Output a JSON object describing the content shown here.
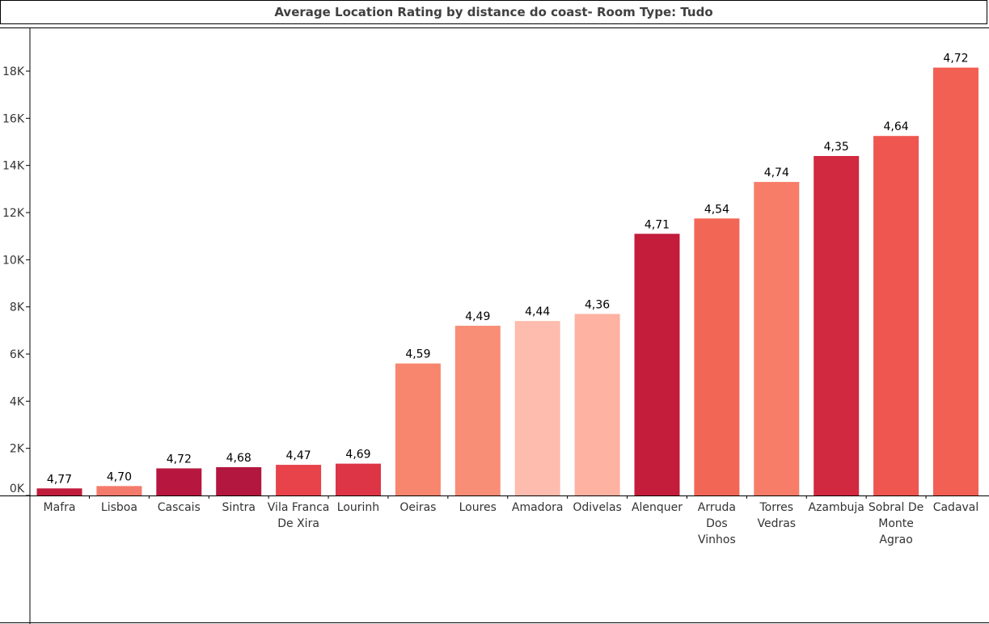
{
  "chart_data": {
    "type": "bar",
    "title": "Average Location Rating by distance do coast- Room Type: Tudo",
    "y_ticks": [
      "0K",
      "2K",
      "4K",
      "6K",
      "8K",
      "10K",
      "12K",
      "14K",
      "16K",
      "18K"
    ],
    "ylim": [
      0,
      19000
    ],
    "grid": false,
    "bars": [
      {
        "category": [
          "Mafra"
        ],
        "value": 300,
        "label": "4,77",
        "color": "#c01c3c"
      },
      {
        "category": [
          "Lisboa"
        ],
        "value": 400,
        "label": "4,70",
        "color": "#f47a6b"
      },
      {
        "category": [
          "Cascais"
        ],
        "value": 1150,
        "label": "4,72",
        "color": "#b7173f"
      },
      {
        "category": [
          "Sintra"
        ],
        "value": 1200,
        "label": "4,68",
        "color": "#b3163e"
      },
      {
        "category": [
          "Vila Franca",
          "De Xira"
        ],
        "value": 1300,
        "label": "4,47",
        "color": "#e8424a"
      },
      {
        "category": [
          "Lourinh"
        ],
        "value": 1350,
        "label": "4,69",
        "color": "#de3546"
      },
      {
        "category": [
          "Oeiras"
        ],
        "value": 5600,
        "label": "4,59",
        "color": "#f8866f"
      },
      {
        "category": [
          "Loures"
        ],
        "value": 7200,
        "label": "4,49",
        "color": "#f98e76"
      },
      {
        "category": [
          "Amadora"
        ],
        "value": 7400,
        "label": "4,44",
        "color": "#fdbcad"
      },
      {
        "category": [
          "Odivelas"
        ],
        "value": 7700,
        "label": "4,36",
        "color": "#fdb2a2"
      },
      {
        "category": [
          "Alenquer"
        ],
        "value": 11100,
        "label": "4,71",
        "color": "#c41c3b"
      },
      {
        "category": [
          "Arruda",
          "Dos",
          "Vinhos"
        ],
        "value": 11750,
        "label": "4,54",
        "color": "#f26656"
      },
      {
        "category": [
          "Torres",
          "Vedras"
        ],
        "value": 13300,
        "label": "4,74",
        "color": "#f77d68"
      },
      {
        "category": [
          "Azambuja"
        ],
        "value": 14400,
        "label": "4,35",
        "color": "#d12940"
      },
      {
        "category": [
          "Sobral De",
          "Monte",
          "Agrao"
        ],
        "value": 15250,
        "label": "4,64",
        "color": "#ee564f"
      },
      {
        "category": [
          "Cadaval"
        ],
        "value": 18150,
        "label": "4,72",
        "color": "#f25f53"
      }
    ]
  }
}
